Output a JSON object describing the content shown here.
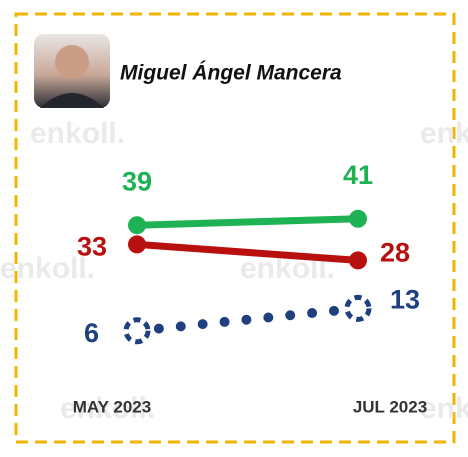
{
  "chart_data": {
    "type": "line",
    "title": "Miguel Ángel Mancera",
    "watermark": "enkoll.",
    "categories": [
      "MAY 2023",
      "JUL 2023"
    ],
    "series": [
      {
        "color": "#1fb254",
        "values": [
          39,
          41
        ],
        "line_style": "solid"
      },
      {
        "color": "#b80f0f",
        "values": [
          33,
          28
        ],
        "line_style": "solid"
      },
      {
        "color": "#1f3f7f",
        "values": [
          6,
          13
        ],
        "line_style": "dotted"
      }
    ]
  }
}
